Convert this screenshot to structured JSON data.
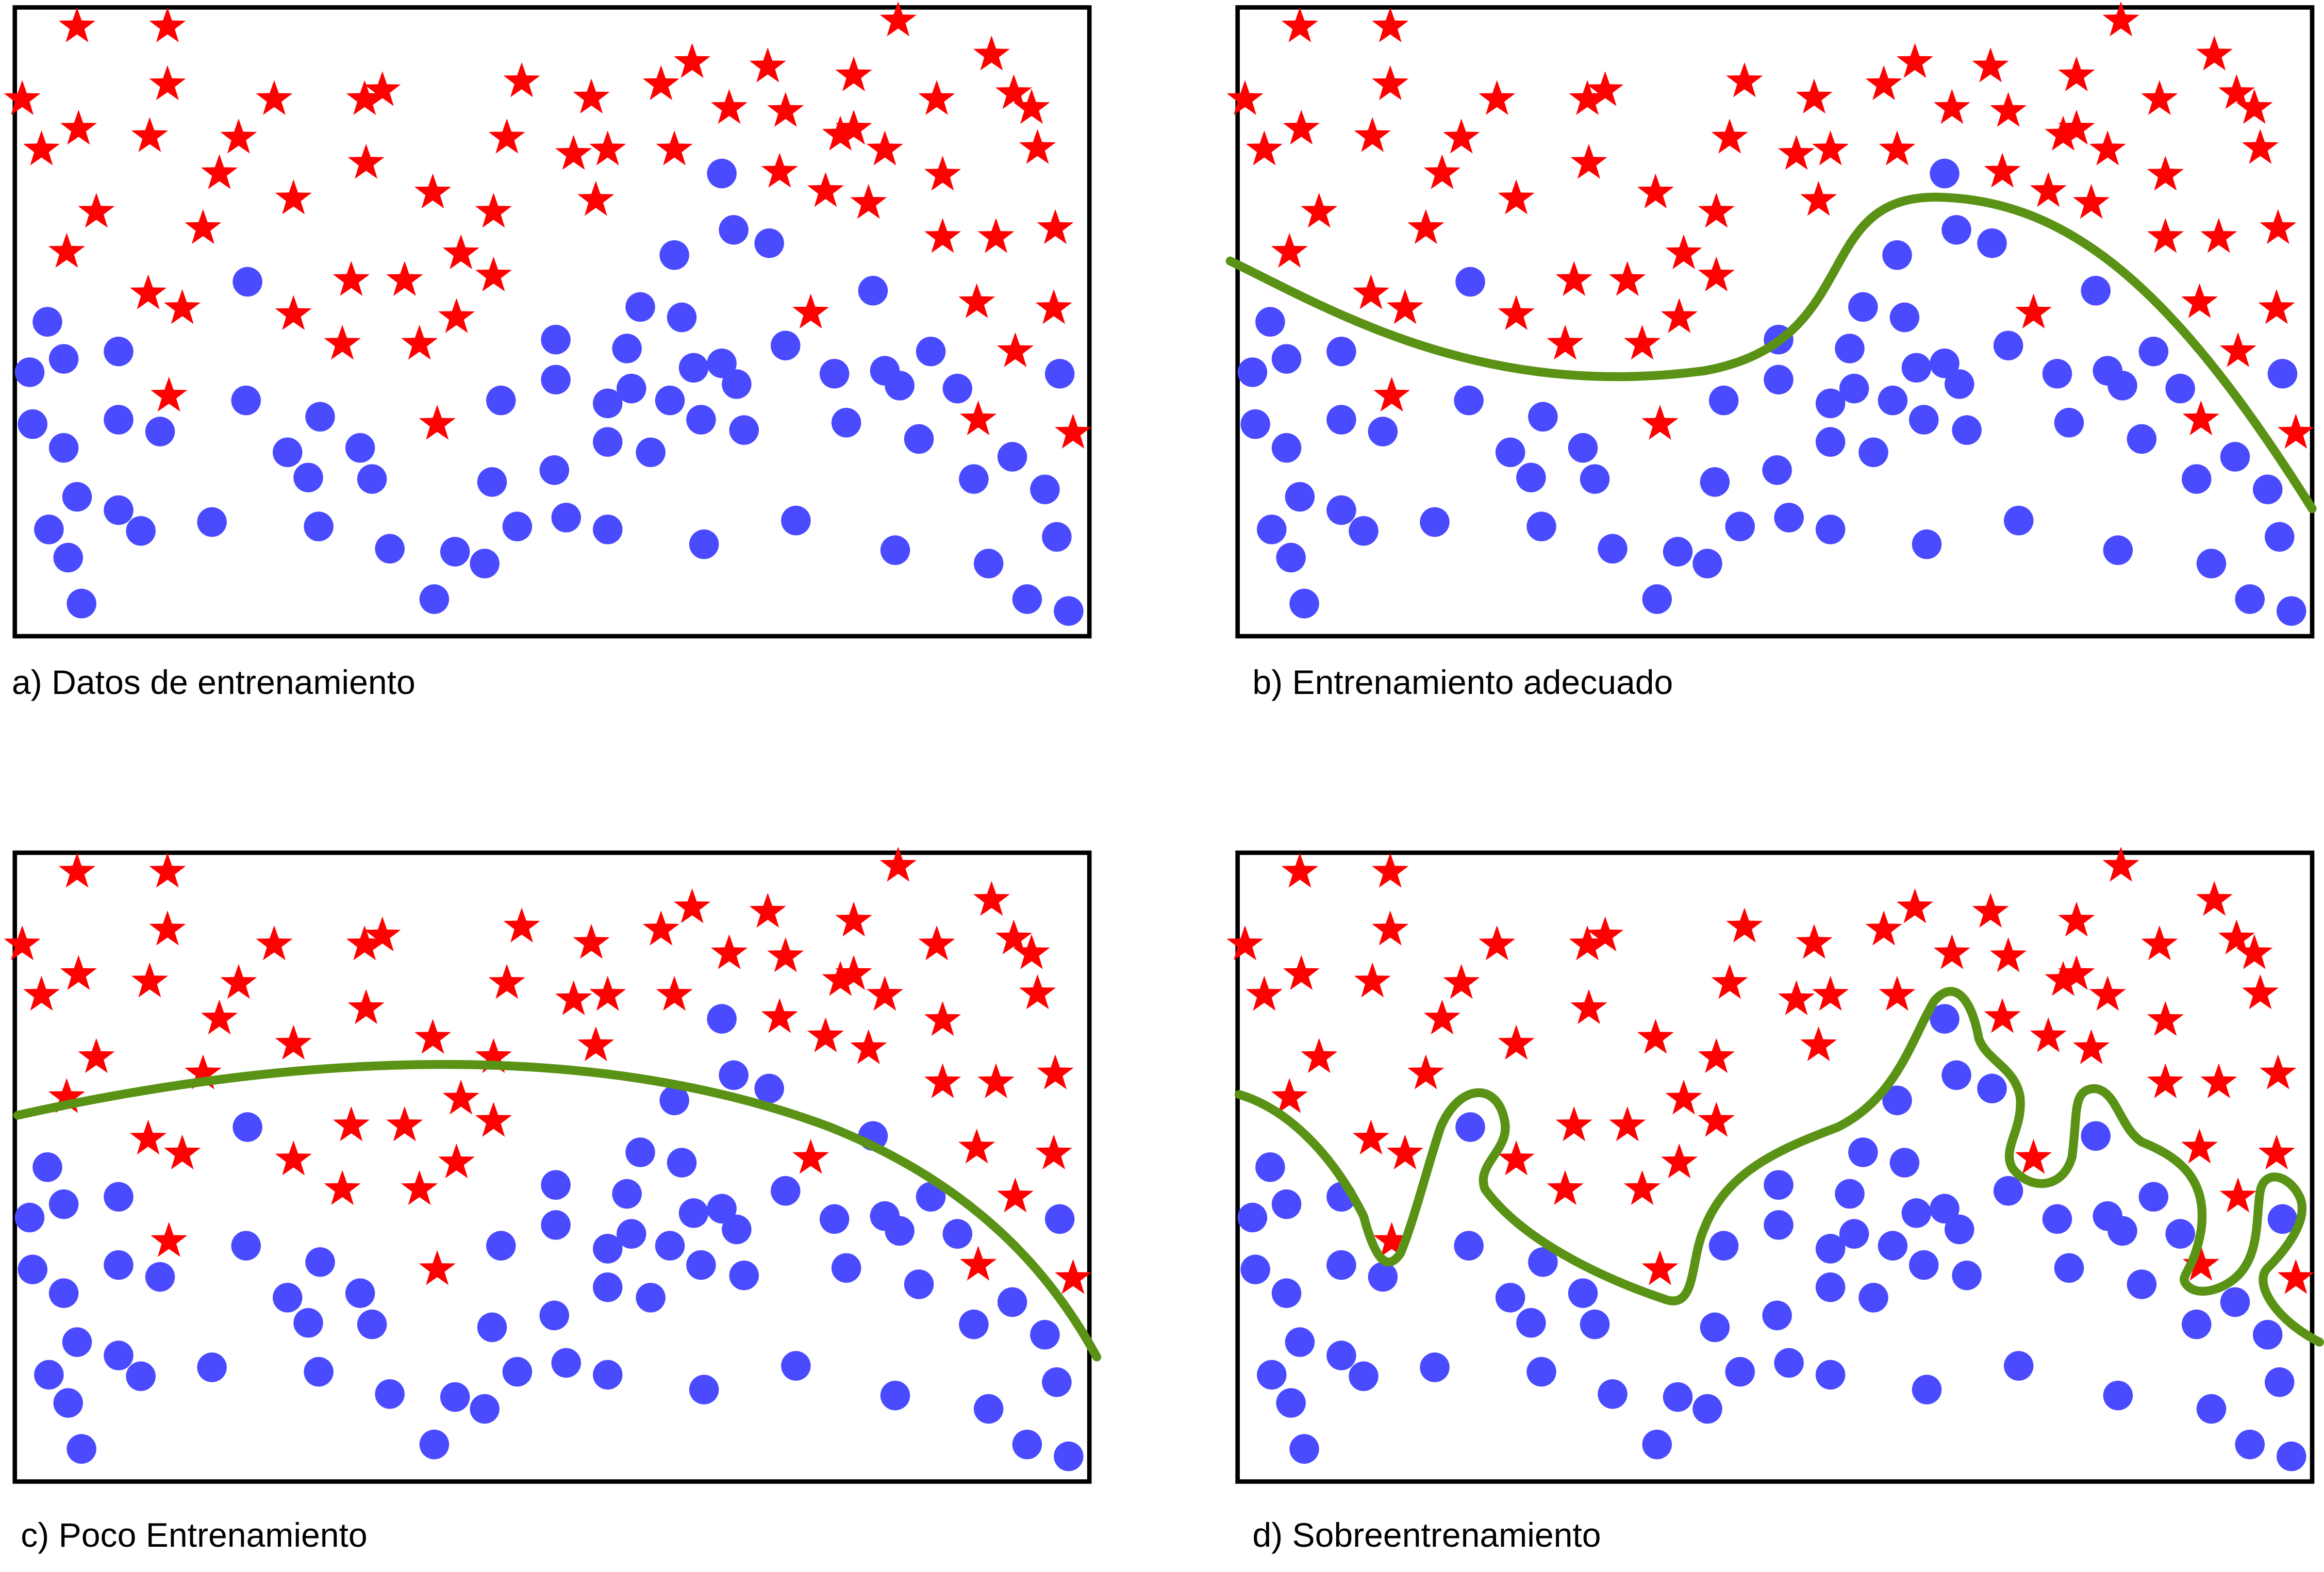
{
  "panels": [
    {
      "id": "a",
      "caption": "a) Datos de entrenamiento",
      "boundary": "none"
    },
    {
      "id": "b",
      "caption": "b) Entrenamiento adecuado",
      "boundary": "good-fit"
    },
    {
      "id": "c",
      "caption": "c) Poco Entrenamiento",
      "boundary": "underfit"
    },
    {
      "id": "d",
      "caption": "d) Sobreentrenamiento",
      "boundary": "overfit"
    }
  ],
  "colors": {
    "star": "#ff0000",
    "dot": "#4a4aff",
    "boundary": "#5a9216",
    "frame": "#000000",
    "text": "#000000"
  },
  "icons": {
    "class_a": "red-star-marker",
    "class_b": "blue-circle-marker"
  }
}
